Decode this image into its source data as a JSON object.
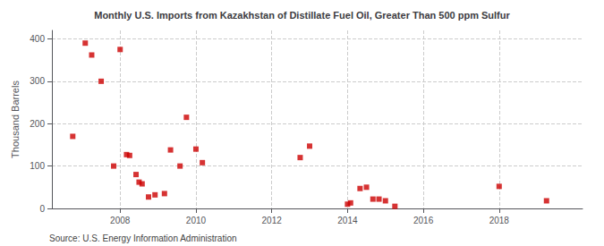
{
  "chart_data": {
    "type": "scatter",
    "title": "Monthly U.S. Imports from Kazakhstan of Distillate Fuel Oil, Greater Than 500 ppm Sulfur",
    "ylabel": "Thousand Barrels",
    "annotations": [
      "Source: U.S. Energy Information Administration"
    ],
    "x": [
      2006.75,
      2007.08,
      2007.25,
      2007.5,
      2007.83,
      2008.0,
      2008.17,
      2008.25,
      2008.42,
      2008.5,
      2008.58,
      2008.75,
      2008.92,
      2009.17,
      2009.33,
      2009.58,
      2009.75,
      2010.0,
      2010.17,
      2012.75,
      2013.0,
      2014.0,
      2014.08,
      2014.33,
      2014.5,
      2014.67,
      2014.83,
      2015.0,
      2015.25,
      2018.0,
      2019.25
    ],
    "values": [
      170,
      390,
      362,
      300,
      100,
      375,
      127,
      125,
      80,
      62,
      58,
      27,
      32,
      35,
      138,
      100,
      215,
      140,
      108,
      120,
      147,
      10,
      13,
      47,
      50,
      22,
      22,
      18,
      5,
      52,
      18
    ],
    "color": "#cc0000",
    "marker": "square",
    "xlim": [
      2006.2,
      2020.2
    ],
    "xticks": [
      2008,
      2010,
      2012,
      2014,
      2016,
      2018
    ],
    "ylim": [
      0,
      420
    ],
    "yticks": [
      0,
      100,
      200,
      300,
      400
    ],
    "grid": true
  }
}
